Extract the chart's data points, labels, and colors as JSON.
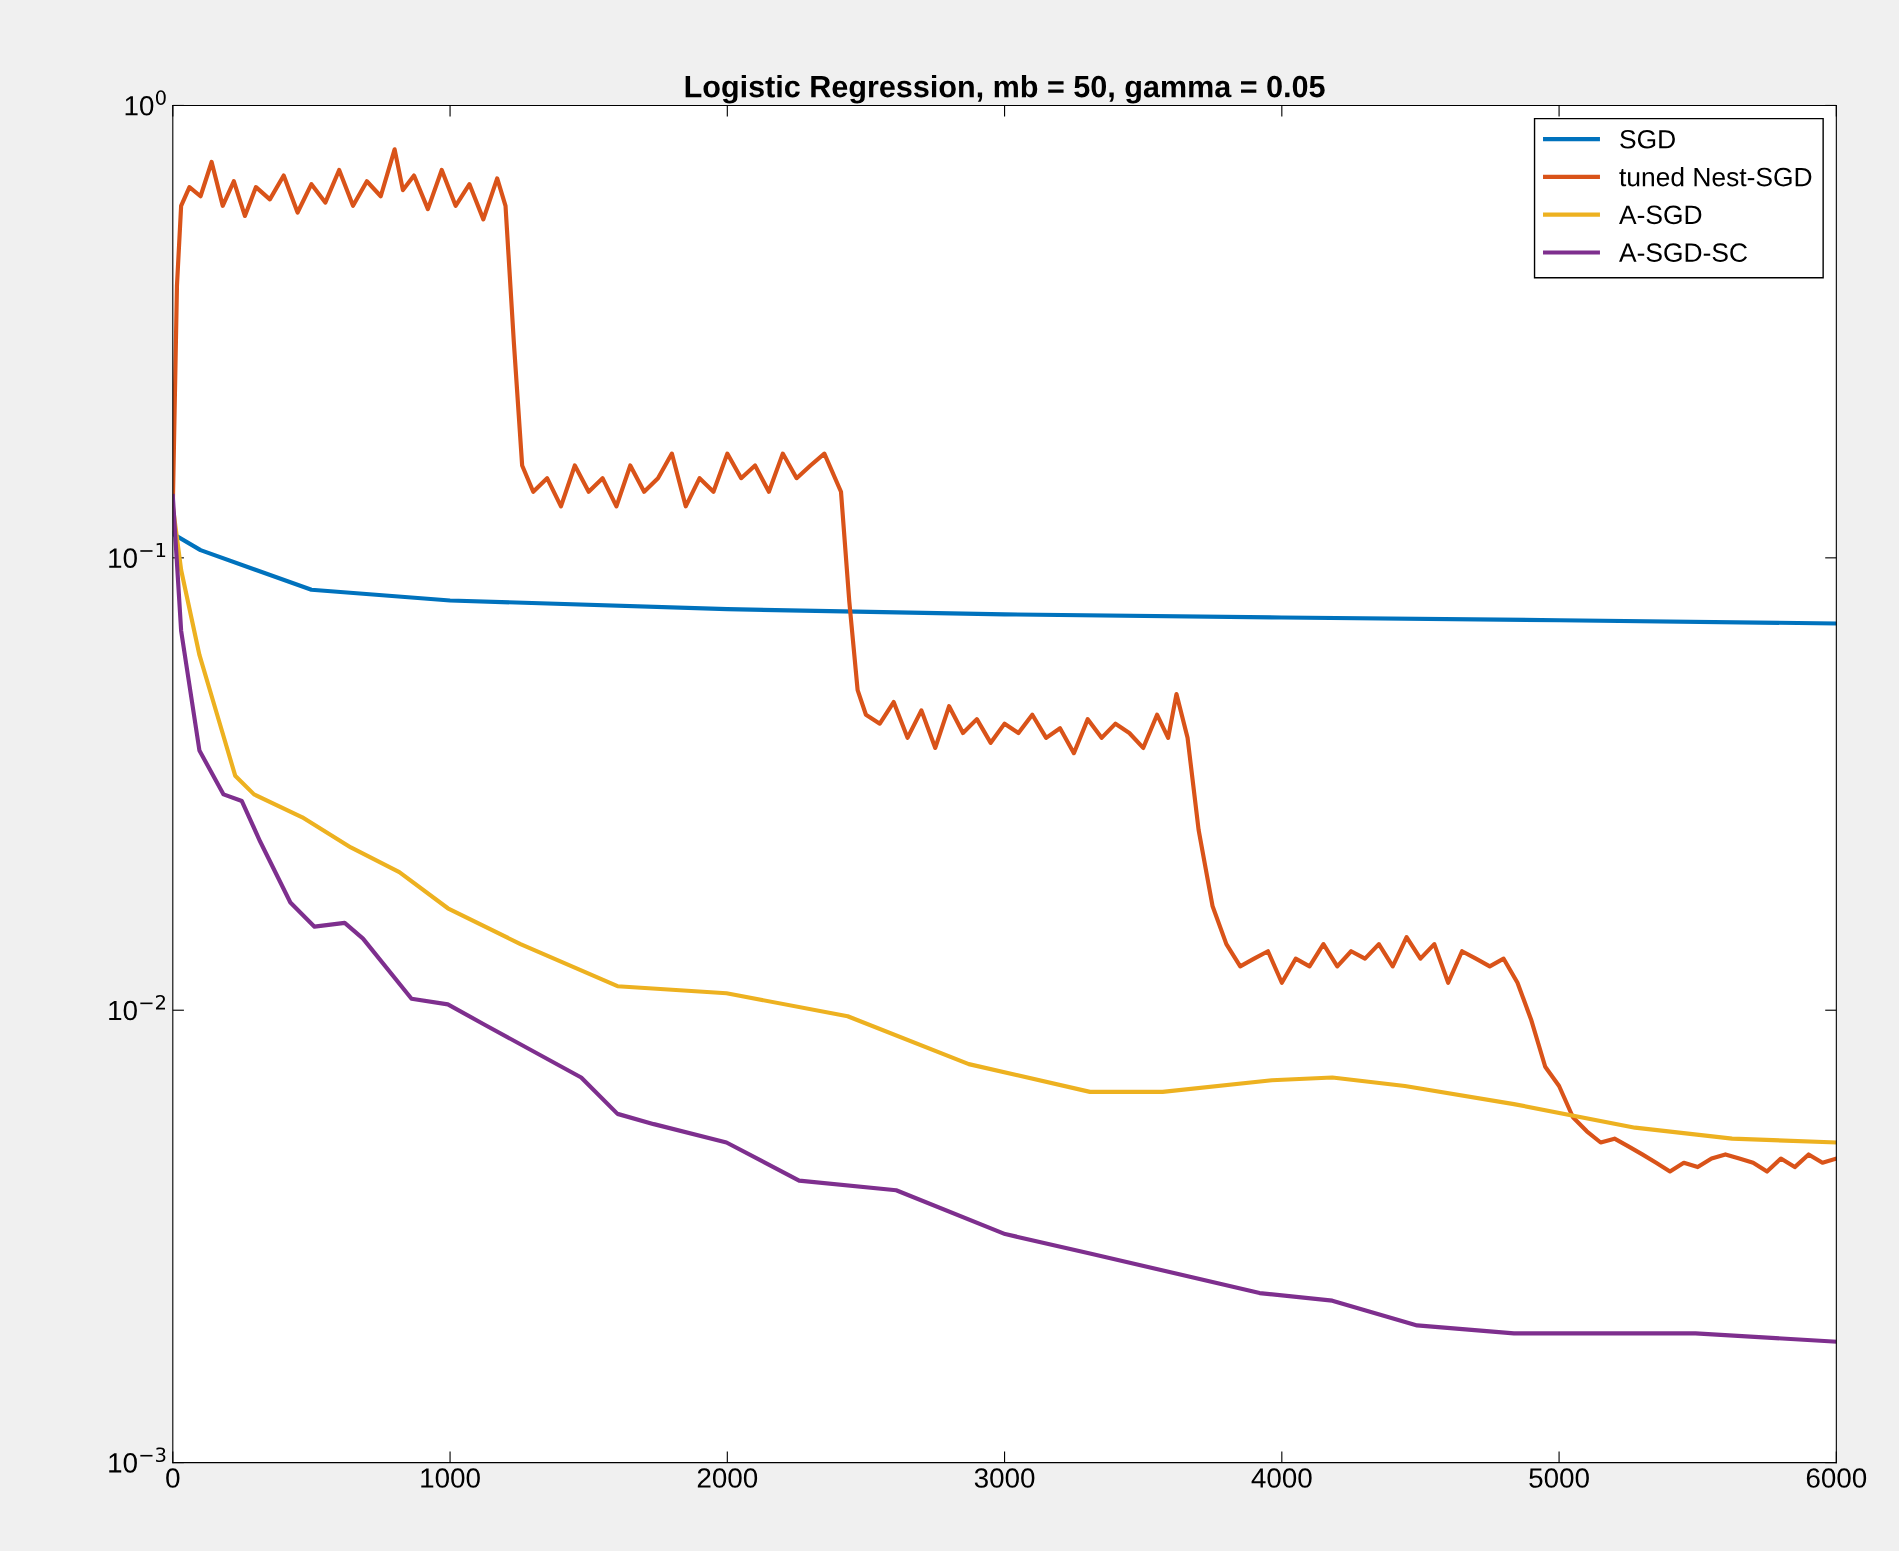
{
  "chart_data": {
    "type": "line",
    "title": "Logistic Regression, mb = 50, gamma = 0.05",
    "log": "y",
    "xlim": [
      0,
      6000
    ],
    "xticks": [
      0,
      1000,
      2000,
      3000,
      4000,
      5000,
      6000
    ],
    "ylim": [
      0.001,
      1
    ],
    "yticks": [
      {
        "value": 0.001,
        "label": "10$^{−3}$"
      },
      {
        "value": 0.01,
        "label": "10$^{−2}$"
      },
      {
        "value": 0.1,
        "label": "10$^{−1}$"
      },
      {
        "value": 1,
        "label": "10$^{0}$"
      }
    ],
    "grid": false,
    "legend": "top right",
    "line_style": "solid",
    "series": [
      {
        "name": "SGD",
        "color": "#0072bd",
        "x": [
          0,
          100,
          500,
          1000,
          2000,
          3000,
          4000,
          5000,
          6000
        ],
        "values": [
          0.113,
          0.104,
          0.085,
          0.0805,
          0.077,
          0.075,
          0.0738,
          0.0728,
          0.0716
        ]
      },
      {
        "name": "tuned Nest-SGD",
        "color": "#d95319",
        "x": [
          0,
          15,
          30,
          60,
          100,
          140,
          180,
          220,
          260,
          300,
          350,
          400,
          450,
          500,
          550,
          600,
          650,
          700,
          750,
          800,
          830,
          870,
          920,
          970,
          1020,
          1070,
          1120,
          1170,
          1200,
          1230,
          1260,
          1300,
          1350,
          1400,
          1450,
          1500,
          1550,
          1600,
          1650,
          1700,
          1750,
          1800,
          1850,
          1900,
          1950,
          2000,
          2050,
          2100,
          2150,
          2200,
          2250,
          2300,
          2350,
          2410,
          2440,
          2470,
          2500,
          2550,
          2600,
          2650,
          2700,
          2750,
          2800,
          2850,
          2900,
          2950,
          3000,
          3050,
          3100,
          3150,
          3200,
          3250,
          3300,
          3350,
          3400,
          3450,
          3500,
          3550,
          3590,
          3620,
          3660,
          3700,
          3750,
          3800,
          3850,
          3900,
          3950,
          4000,
          4050,
          4100,
          4150,
          4200,
          4250,
          4300,
          4350,
          4400,
          4450,
          4500,
          4550,
          4600,
          4650,
          4700,
          4750,
          4800,
          4850,
          4900,
          4950,
          5000,
          5050,
          5100,
          5150,
          5200,
          5250,
          5300,
          5350,
          5400,
          5450,
          5500,
          5550,
          5600,
          5650,
          5700,
          5750,
          5800,
          5850,
          5900,
          5950,
          6000
        ],
        "values": [
          0.13,
          0.4,
          0.6,
          0.66,
          0.63,
          0.75,
          0.6,
          0.68,
          0.57,
          0.66,
          0.62,
          0.7,
          0.58,
          0.67,
          0.61,
          0.72,
          0.6,
          0.68,
          0.63,
          0.8,
          0.65,
          0.7,
          0.59,
          0.72,
          0.6,
          0.67,
          0.56,
          0.69,
          0.6,
          0.3,
          0.16,
          0.14,
          0.15,
          0.13,
          0.16,
          0.14,
          0.15,
          0.13,
          0.16,
          0.14,
          0.15,
          0.17,
          0.13,
          0.15,
          0.14,
          0.17,
          0.15,
          0.16,
          0.14,
          0.17,
          0.15,
          0.16,
          0.17,
          0.14,
          0.08,
          0.051,
          0.045,
          0.043,
          0.048,
          0.04,
          0.046,
          0.038,
          0.047,
          0.041,
          0.044,
          0.039,
          0.043,
          0.041,
          0.045,
          0.04,
          0.042,
          0.037,
          0.044,
          0.04,
          0.043,
          0.041,
          0.038,
          0.045,
          0.04,
          0.05,
          0.04,
          0.025,
          0.017,
          0.014,
          0.0125,
          0.013,
          0.0135,
          0.0115,
          0.013,
          0.0125,
          0.014,
          0.0125,
          0.0135,
          0.013,
          0.014,
          0.0125,
          0.0145,
          0.013,
          0.014,
          0.0115,
          0.0135,
          0.013,
          0.0125,
          0.013,
          0.0115,
          0.0095,
          0.0075,
          0.0068,
          0.0058,
          0.0054,
          0.0051,
          0.0052,
          0.005,
          0.0048,
          0.0046,
          0.0044,
          0.0046,
          0.0045,
          0.0047,
          0.0048,
          0.0047,
          0.0046,
          0.0044,
          0.0047,
          0.0045,
          0.0048,
          0.0046,
          0.0047
        ]
      },
      {
        "name": "A-SGD",
        "color": "#edb120",
        "x": [
          0,
          30,
          96,
          160,
          225,
          293,
          467,
          642,
          817,
          992,
          1254,
          1604,
          1997,
          2434,
          2871,
          3308,
          3570,
          3964,
          4182,
          4444,
          4837,
          5274,
          5624,
          6000
        ],
        "values": [
          0.13,
          0.094,
          0.061,
          0.045,
          0.033,
          0.03,
          0.0267,
          0.0229,
          0.0202,
          0.0168,
          0.014,
          0.0113,
          0.0109,
          0.0097,
          0.0076,
          0.0066,
          0.0066,
          0.007,
          0.0071,
          0.0068,
          0.0062,
          0.0055,
          0.0052,
          0.0051
        ]
      },
      {
        "name": "A-SGD-SC",
        "color": "#7e2f8e",
        "x": [
          0,
          30,
          96,
          183,
          249,
          315,
          424,
          511,
          620,
          686,
          861,
          992,
          1123,
          1473,
          1604,
          1735,
          1997,
          2259,
          2609,
          3002,
          3308,
          3920,
          4182,
          4488,
          4837,
          5492,
          6000
        ],
        "values": [
          0.137,
          0.069,
          0.0375,
          0.03,
          0.029,
          0.0236,
          0.0173,
          0.0153,
          0.0156,
          0.0144,
          0.0106,
          0.0103,
          0.0093,
          0.0071,
          0.0059,
          0.0056,
          0.0051,
          0.0042,
          0.004,
          0.0032,
          0.0029,
          0.00237,
          0.00228,
          0.00201,
          0.00193,
          0.00193,
          0.00185
        ]
      }
    ]
  }
}
